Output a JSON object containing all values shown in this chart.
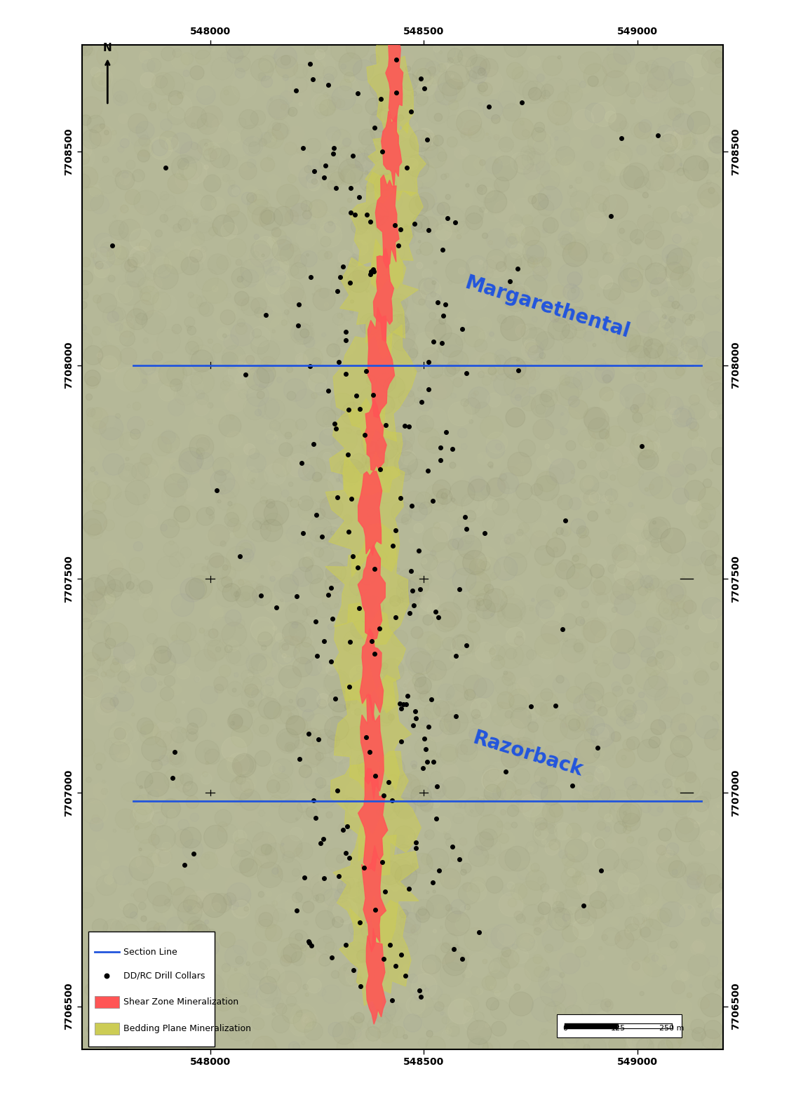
{
  "xlim": [
    547700,
    549200
  ],
  "ylim": [
    7706400,
    7708750
  ],
  "xticks": [
    548000,
    548500,
    549000
  ],
  "yticks": [
    7706500,
    7707000,
    7707500,
    7708000,
    7708500
  ],
  "bg_color": "#b5b898",
  "label_color": "#2255dd",
  "label_fontsize": 20,
  "label_rotation": -17,
  "shear_color": "#ff5555",
  "shear_alpha": 0.88,
  "bedding_color": "#cccc55",
  "bedding_alpha": 0.55,
  "drill_color": "#000000",
  "drill_size": 16,
  "tick_fontsize": 10,
  "section_lines": [
    {
      "x": [
        547820,
        549150
      ],
      "y": [
        7708000,
        7708000
      ]
    },
    {
      "x": [
        547820,
        549150
      ],
      "y": [
        7706980,
        7706980
      ]
    }
  ],
  "bedding_zones": [
    [
      548430,
      7708650,
      50,
      110,
      1
    ],
    [
      548435,
      7708480,
      65,
      95,
      2
    ],
    [
      548410,
      7708310,
      78,
      125,
      3
    ],
    [
      548395,
      7708155,
      72,
      108,
      4
    ],
    [
      548382,
      7707960,
      88,
      138,
      5
    ],
    [
      548372,
      7707800,
      78,
      98,
      6
    ],
    [
      548372,
      7707650,
      82,
      128,
      7
    ],
    [
      548380,
      7707480,
      88,
      118,
      8
    ],
    [
      548380,
      7707320,
      83,
      108,
      9
    ],
    [
      548380,
      7707150,
      78,
      128,
      10
    ],
    [
      548385,
      7706975,
      88,
      138,
      11
    ],
    [
      548385,
      7706800,
      83,
      128,
      12
    ],
    [
      548390,
      7706620,
      68,
      118,
      13
    ]
  ],
  "shear_zones": [
    [
      548432,
      7708670,
      18,
      88,
      20
    ],
    [
      548427,
      7708510,
      20,
      78,
      21
    ],
    [
      548417,
      7708340,
      23,
      98,
      22
    ],
    [
      548407,
      7708165,
      21,
      88,
      23
    ],
    [
      548397,
      7707995,
      26,
      108,
      24
    ],
    [
      548387,
      7707825,
      23,
      78,
      25
    ],
    [
      548377,
      7707655,
      24,
      98,
      26
    ],
    [
      548377,
      7707472,
      26,
      93,
      27
    ],
    [
      548377,
      7707283,
      24,
      88,
      28
    ],
    [
      548379,
      7707102,
      23,
      103,
      29
    ],
    [
      548381,
      7706932,
      26,
      113,
      30
    ],
    [
      548381,
      7706742,
      24,
      108,
      31
    ],
    [
      548386,
      7706562,
      20,
      98,
      32
    ]
  ]
}
